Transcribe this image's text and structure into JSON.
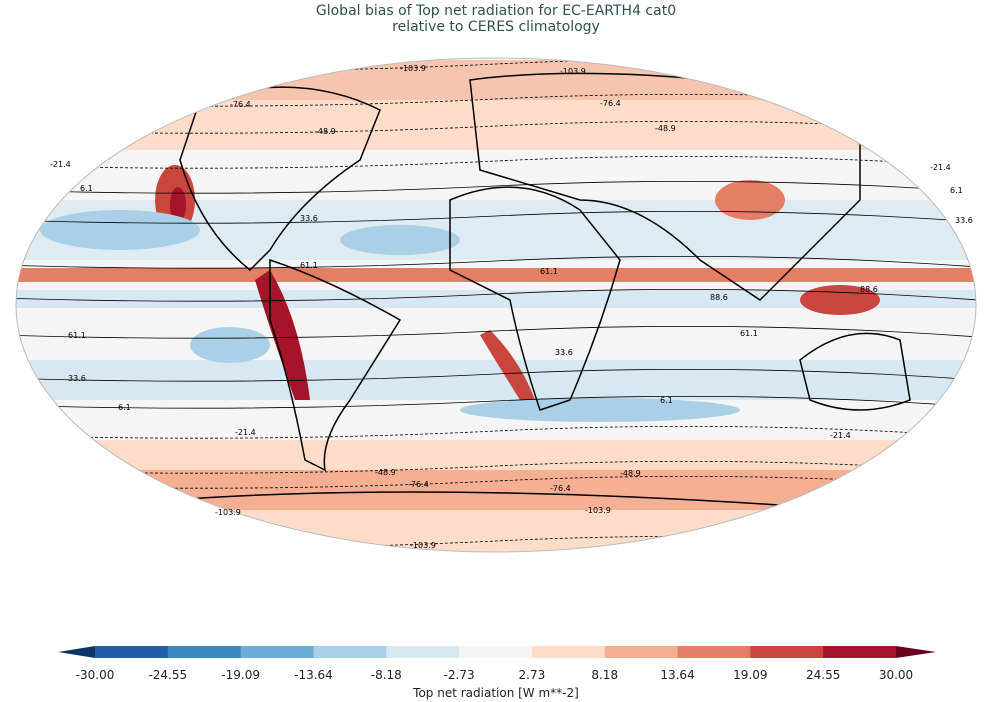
{
  "title": {
    "line1": "Global bias of Top net radiation for EC-EARTH4 cat0",
    "line2": "relative to CERES climatology"
  },
  "colorbar": {
    "label": "Top net radiation [W m**-2]",
    "ticks": [
      "-30.00",
      "-24.55",
      "-19.09",
      "-13.64",
      "-8.18",
      "-2.73",
      "2.73",
      "8.18",
      "13.64",
      "19.09",
      "24.55",
      "30.00"
    ],
    "colors": [
      "#1f5fa6",
      "#3a87c0",
      "#6aaed6",
      "#a9d0e6",
      "#d8e8f2",
      "#f5f5f5",
      "#fddcc9",
      "#f5b093",
      "#e47f65",
      "#c9463d",
      "#a51428"
    ],
    "under_color": "#0b3563",
    "over_color": "#6a0220"
  },
  "contour_levels": [
    "-103.9",
    "-76.4",
    "-48.9",
    "-21.4",
    "6.1",
    "33.6",
    "61.1",
    "88.6"
  ]
}
